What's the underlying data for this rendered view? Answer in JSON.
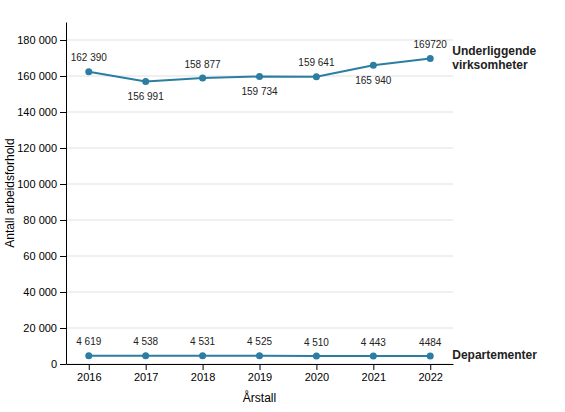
{
  "chart_data": {
    "type": "line",
    "x": [
      2016,
      2017,
      2018,
      2019,
      2020,
      2021,
      2022
    ],
    "xlim": [
      2015.6,
      2022.4
    ],
    "xticks": [
      2016,
      2017,
      2018,
      2019,
      2020,
      2021,
      2022
    ],
    "ylim": [
      0,
      190000
    ],
    "yticks": [
      0,
      {
        "value": 20000,
        "label": "20 000"
      },
      {
        "value": 40000,
        "label": "40 000"
      },
      {
        "value": 60000,
        "label": "60 000"
      },
      {
        "value": 80000,
        "label": "80 000"
      },
      {
        "value": 100000,
        "label": "100 000"
      },
      {
        "value": 120000,
        "label": "120 000"
      },
      {
        "value": 140000,
        "label": "140 000"
      },
      {
        "value": 160000,
        "label": "160 000"
      },
      {
        "value": 180000,
        "label": "180 000"
      }
    ],
    "xlabel": "Årstall",
    "ylabel": "Antall arbeidsforhold",
    "grid": true,
    "data_labels": true,
    "series": [
      {
        "name": "Underliggende\nvirksomheter",
        "color": "#2b7da1",
        "marker": "circle",
        "values": [
          162390,
          156991,
          158877,
          159734,
          159641,
          165940,
          169720
        ],
        "value_labels": [
          "162 390",
          "156 991",
          "158 877",
          "159 734",
          "159 641",
          "165 940",
          "169720"
        ]
      },
      {
        "name": "Departementer",
        "color": "#2b7da1",
        "marker": "circle",
        "values": [
          4619,
          4538,
          4531,
          4525,
          4510,
          4443,
          4484
        ],
        "value_labels": [
          "4 619",
          "4 538",
          "4 531",
          "4 525",
          "4 510",
          "4 443",
          "4484"
        ]
      }
    ]
  }
}
